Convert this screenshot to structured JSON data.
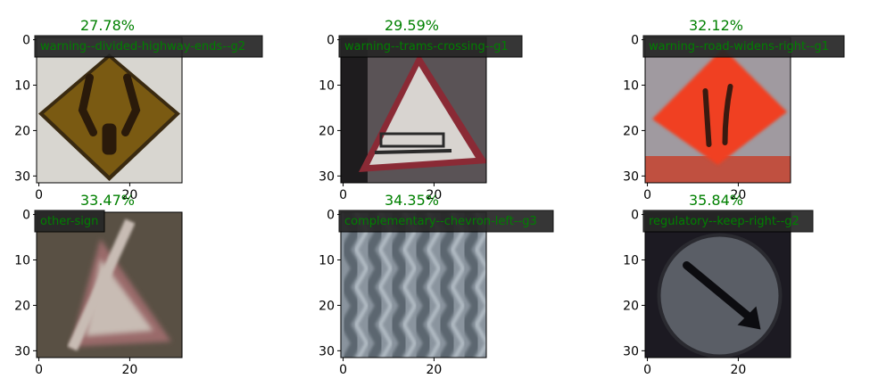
{
  "chart_data": [
    {
      "type": "image",
      "title": "27.78%",
      "label": "warning--divided-highway-ends--g2",
      "xticks": [
        "0",
        "20"
      ],
      "yticks": [
        "0",
        "10",
        "20",
        "30"
      ],
      "xlim": [
        0,
        32
      ],
      "ylim": [
        32,
        0
      ],
      "colors": {
        "background": "#d8d6d0",
        "sign": "#7a5a12",
        "symbol": "#2a1a0a",
        "edge": "#3a2a10"
      },
      "icon": "diamond-sign-divided-highway-ends"
    },
    {
      "type": "image",
      "title": "29.59%",
      "label": "warning--trams-crossing--g1",
      "xticks": [
        "0",
        "20"
      ],
      "yticks": [
        "0",
        "10",
        "20",
        "30"
      ],
      "xlim": [
        0,
        32
      ],
      "ylim": [
        32,
        0
      ],
      "colors": {
        "background": "#5a5356",
        "sign": "#d8d4d0",
        "border": "#8a2a35",
        "symbol": "#2a2a2a"
      },
      "icon": "triangle-sign-tram"
    },
    {
      "type": "image",
      "title": "32.12%",
      "label": "warning--road-widens-right--g1",
      "xticks": [
        "0",
        "20"
      ],
      "yticks": [
        "0",
        "10",
        "20",
        "30"
      ],
      "xlim": [
        0,
        32
      ],
      "ylim": [
        32,
        0
      ],
      "colors": {
        "background": "#a09aa0",
        "sign": "#f04020",
        "symbol": "#3a1a10",
        "bottom": "#c05040"
      },
      "icon": "diamond-sign-road-widens"
    },
    {
      "type": "image",
      "title": "33.47%",
      "label": "other-sign",
      "xticks": [
        "0",
        "20"
      ],
      "yticks": [
        "0",
        "10",
        "20",
        "30"
      ],
      "xlim": [
        0,
        32
      ],
      "ylim": [
        32,
        0
      ],
      "colors": {
        "background": "#6a6052",
        "sign": "#c8bcb4",
        "border": "#9a6a6a",
        "dark": "#3a342c"
      },
      "icon": "triangle-sign-blurred"
    },
    {
      "type": "image",
      "title": "34.35%",
      "label": "complementary--chevron-left--g3",
      "xticks": [
        "0",
        "20"
      ],
      "yticks": [
        "0",
        "10",
        "20",
        "30"
      ],
      "xlim": [
        0,
        32
      ],
      "ylim": [
        32,
        0
      ],
      "colors": {
        "background": "#8a949e",
        "stripe": "#5c6670",
        "light": "#b6c0c8"
      },
      "icon": "wavy-stripes"
    },
    {
      "type": "image",
      "title": "35.84%",
      "label": "regulatory--keep-right--g2",
      "xticks": [
        "0",
        "20"
      ],
      "yticks": [
        "0",
        "10",
        "20",
        "30"
      ],
      "xlim": [
        0,
        32
      ],
      "ylim": [
        32,
        0
      ],
      "colors": {
        "background": "#1c1a22",
        "sign": "#5a5e66",
        "ring": "#2a2a30",
        "arrow": "#0c0c10"
      },
      "icon": "round-sign-keep-right"
    }
  ],
  "style": {
    "title_color": "#008000",
    "label_text_color": "#008000",
    "label_box_color": "#262626"
  }
}
